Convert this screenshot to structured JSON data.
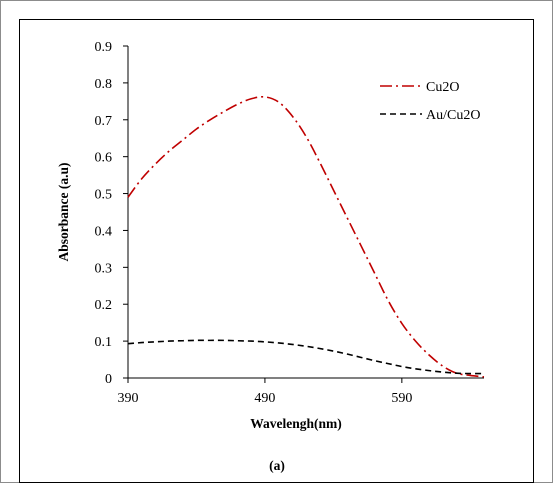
{
  "chart_data": {
    "type": "line",
    "title": "",
    "xlabel": "Wavelengh(nm)",
    "ylabel": "Absorbance (a.u)",
    "caption": "(a)",
    "xlim": [
      390,
      650
    ],
    "ylim": [
      0,
      0.9
    ],
    "xticks": [
      390,
      490,
      590
    ],
    "yticks": [
      0,
      0.1,
      0.2,
      0.3,
      0.4,
      0.5,
      0.6,
      0.7,
      0.8,
      0.9
    ],
    "ytick_labels": [
      "0",
      "0.1",
      "0.2",
      "0.3",
      "0.4",
      "0.5",
      "0.6",
      "0.7",
      "0.8",
      "0.9"
    ],
    "xtick_labels": [
      "390",
      "490",
      "590"
    ],
    "grid": false,
    "legend_position": "top-right",
    "series": [
      {
        "name": "Cu2O",
        "color": "#c00000",
        "dash": "dash-dot",
        "x": [
          390,
          400,
          410,
          420,
          430,
          440,
          450,
          460,
          470,
          480,
          490,
          500,
          510,
          520,
          530,
          540,
          550,
          560,
          570,
          580,
          590,
          600,
          610,
          620,
          630,
          640,
          650
        ],
        "y": [
          0.49,
          0.54,
          0.58,
          0.615,
          0.645,
          0.675,
          0.7,
          0.722,
          0.742,
          0.757,
          0.762,
          0.748,
          0.71,
          0.655,
          0.585,
          0.51,
          0.435,
          0.36,
          0.285,
          0.21,
          0.148,
          0.1,
          0.062,
          0.032,
          0.013,
          0.007,
          0.003
        ]
      },
      {
        "name": "Au/Cu2O",
        "color": "#000000",
        "dash": "dash",
        "x": [
          390,
          400,
          410,
          420,
          430,
          440,
          450,
          460,
          470,
          480,
          490,
          500,
          510,
          520,
          530,
          540,
          550,
          560,
          570,
          580,
          590,
          600,
          610,
          620,
          630,
          640,
          650
        ],
        "y": [
          0.093,
          0.096,
          0.098,
          0.1,
          0.101,
          0.102,
          0.102,
          0.102,
          0.101,
          0.1,
          0.098,
          0.095,
          0.091,
          0.086,
          0.08,
          0.073,
          0.065,
          0.056,
          0.047,
          0.039,
          0.031,
          0.025,
          0.02,
          0.016,
          0.013,
          0.012,
          0.012
        ]
      }
    ]
  }
}
